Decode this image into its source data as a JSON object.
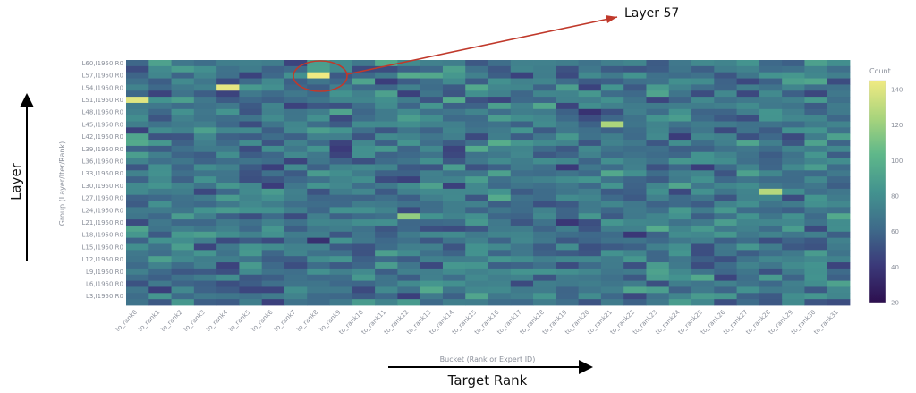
{
  "chart_data": {
    "type": "heatmap",
    "title": "",
    "xlabel": "Bucket (Rank or Expert ID)",
    "ylabel": "Group (Layer/Iter/Rank)",
    "x_categories": [
      "to_rank0",
      "to_rank1",
      "to_rank2",
      "to_rank3",
      "to_rank4",
      "to_rank5",
      "to_rank6",
      "to_rank7",
      "to_rank8",
      "to_rank9",
      "to_rank10",
      "to_rank11",
      "to_rank12",
      "to_rank13",
      "to_rank14",
      "to_rank15",
      "to_rank16",
      "to_rank17",
      "to_rank18",
      "to_rank19",
      "to_rank20",
      "to_rank21",
      "to_rank22",
      "to_rank23",
      "to_rank24",
      "to_rank25",
      "to_rank26",
      "to_rank27",
      "to_rank28",
      "to_rank29",
      "to_rank30",
      "to_rank31"
    ],
    "y_tick_labels": [
      "L60,I1950,R0",
      "L57,I1950,R0",
      "L54,I1950,R0",
      "L51,I1950,R0",
      "L48,I1950,R0",
      "L45,I1950,R0",
      "L42,I1950,R0",
      "L39,I1950,R0",
      "L36,I1950,R0",
      "L33,I1950,R0",
      "L30,I1950,R0",
      "L27,I1950,R0",
      "L24,I1950,R0",
      "L21,I1950,R0",
      "L18,I1950,R0",
      "L15,I1950,R0",
      "L12,I1950,R0",
      "L9,I1950,R0",
      "L6,I1950,R0",
      "L3,I1950,R0"
    ],
    "n_rows": 40,
    "colorscale": "viridis",
    "colorbar": {
      "title": "Count",
      "range": [
        20,
        145
      ],
      "ticks": [
        20,
        40,
        60,
        80,
        100,
        120,
        140
      ]
    },
    "highlights": [
      {
        "row": "L57,I1950,R0",
        "col": "to_rank8",
        "value": 145
      },
      {
        "row": "L54,I1950,R0",
        "col": "to_rank4",
        "value": 142
      },
      {
        "row": "L51,I1950,R0",
        "col": "to_rank0",
        "value": 140
      },
      {
        "row": "L28",
        "col": "to_rank28",
        "value": 128
      },
      {
        "row": "L45,I1950,R0",
        "col": "to_rank21",
        "value": 125
      },
      {
        "row": "L22",
        "col": "to_rank12",
        "value": 118
      }
    ]
  },
  "labels": {
    "layer_axis": "Layer",
    "target_axis": "Target Rank",
    "annotation": "Layer 57"
  },
  "colors": {
    "annotation": "#c0392b",
    "axis_arrow": "#000000"
  }
}
